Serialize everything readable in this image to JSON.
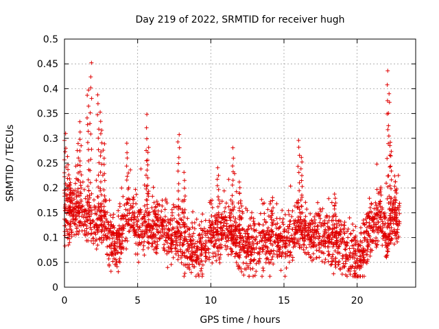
{
  "chart_data": {
    "type": "scatter",
    "title": "Day 219 of 2022, SRMTID for receiver hugh",
    "xlabel": "GPS time / hours",
    "ylabel": "SRMTID / TECUs",
    "xlim": [
      0,
      24
    ],
    "ylim": [
      0,
      0.5
    ],
    "xticks": [
      0,
      5,
      10,
      15,
      20
    ],
    "xtick_labels": [
      "0",
      "5",
      "10",
      "15",
      "20"
    ],
    "yticks": [
      0,
      0.05,
      0.1,
      0.15,
      0.2,
      0.25,
      0.3,
      0.35,
      0.4,
      0.45,
      0.5
    ],
    "ytick_labels": [
      "0",
      "0.05",
      "0.1",
      "0.15",
      "0.2",
      "0.25",
      "0.3",
      "0.35",
      "0.4",
      "0.45",
      "0.5"
    ],
    "grid": true,
    "marker": "plus",
    "marker_color": "#e00000",
    "series": [
      {
        "name": "SRMTID",
        "envelope": [
          [
            0.0,
            0.14
          ],
          [
            0.5,
            0.15
          ],
          [
            1.0,
            0.16
          ],
          [
            1.5,
            0.15
          ],
          [
            2.0,
            0.13
          ],
          [
            2.5,
            0.14
          ],
          [
            3.0,
            0.1
          ],
          [
            3.5,
            0.09
          ],
          [
            4.0,
            0.12
          ],
          [
            4.5,
            0.14
          ],
          [
            5.0,
            0.12
          ],
          [
            5.5,
            0.13
          ],
          [
            6.0,
            0.12
          ],
          [
            6.5,
            0.13
          ],
          [
            7.0,
            0.11
          ],
          [
            7.5,
            0.1
          ],
          [
            8.0,
            0.1
          ],
          [
            8.5,
            0.08
          ],
          [
            9.0,
            0.07
          ],
          [
            9.5,
            0.09
          ],
          [
            10.0,
            0.11
          ],
          [
            10.5,
            0.1
          ],
          [
            11.0,
            0.12
          ],
          [
            11.5,
            0.11
          ],
          [
            12.0,
            0.09
          ],
          [
            12.5,
            0.08
          ],
          [
            13.0,
            0.08
          ],
          [
            13.5,
            0.09
          ],
          [
            14.0,
            0.1
          ],
          [
            14.5,
            0.1
          ],
          [
            15.0,
            0.09
          ],
          [
            15.5,
            0.1
          ],
          [
            16.0,
            0.12
          ],
          [
            16.5,
            0.11
          ],
          [
            17.0,
            0.1
          ],
          [
            17.5,
            0.11
          ],
          [
            18.0,
            0.1
          ],
          [
            18.5,
            0.09
          ],
          [
            19.0,
            0.08
          ],
          [
            19.5,
            0.07
          ],
          [
            20.0,
            0.06
          ],
          [
            20.5,
            0.08
          ],
          [
            21.0,
            0.12
          ],
          [
            21.5,
            0.14
          ],
          [
            22.0,
            0.1
          ],
          [
            22.5,
            0.14
          ],
          [
            22.8,
            0.13
          ]
        ],
        "peaks": [
          {
            "x": 0.05,
            "y": 0.31
          },
          {
            "x": 0.2,
            "y": 0.26
          },
          {
            "x": 0.4,
            "y": 0.21
          },
          {
            "x": 0.9,
            "y": 0.29
          },
          {
            "x": 1.1,
            "y": 0.33
          },
          {
            "x": 1.6,
            "y": 0.4
          },
          {
            "x": 1.8,
            "y": 0.45
          },
          {
            "x": 2.3,
            "y": 0.39
          },
          {
            "x": 2.5,
            "y": 0.35
          },
          {
            "x": 2.7,
            "y": 0.29
          },
          {
            "x": 4.3,
            "y": 0.29
          },
          {
            "x": 5.6,
            "y": 0.35
          },
          {
            "x": 5.7,
            "y": 0.28
          },
          {
            "x": 7.8,
            "y": 0.31
          },
          {
            "x": 8.2,
            "y": 0.23
          },
          {
            "x": 10.5,
            "y": 0.24
          },
          {
            "x": 11.5,
            "y": 0.28
          },
          {
            "x": 12.0,
            "y": 0.21
          },
          {
            "x": 14.2,
            "y": 0.18
          },
          {
            "x": 16.0,
            "y": 0.3
          },
          {
            "x": 16.2,
            "y": 0.26
          },
          {
            "x": 18.5,
            "y": 0.19
          },
          {
            "x": 21.6,
            "y": 0.2
          },
          {
            "x": 22.1,
            "y": 0.44
          },
          {
            "x": 22.2,
            "y": 0.39
          },
          {
            "x": 22.3,
            "y": 0.29
          },
          {
            "x": 22.6,
            "y": 0.22
          }
        ],
        "point_count": 2400,
        "x_range": [
          0.0,
          22.9
        ]
      }
    ]
  }
}
